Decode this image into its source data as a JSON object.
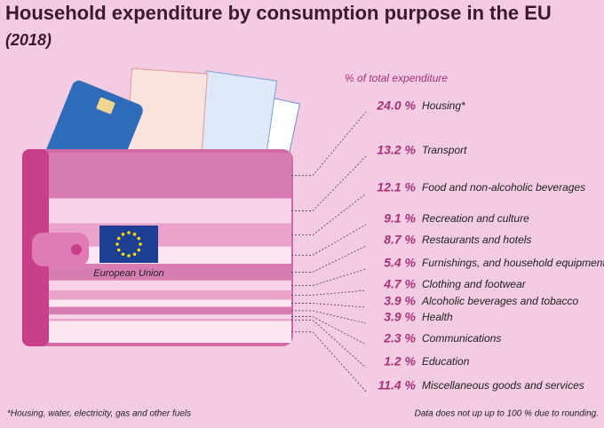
{
  "chart_data": {
    "type": "wallet",
    "title": "Household expenditure by consumption purpose in the EU",
    "subtitle": "(2018)",
    "value_axis_label": "% of total expenditure",
    "wallet_label": "European Union",
    "categories": [
      "Housing*",
      "Transport",
      "Food and non-alcoholic beverages",
      "Recreation and culture",
      "Restaurants and hotels",
      "Furnishings, and household equipment",
      "Clothing and footwear",
      "Alcoholic beverages and tobacco",
      "Health",
      "Communications",
      "Education",
      "Miscellaneous goods and services"
    ],
    "values": [
      24.0,
      13.2,
      12.1,
      9.1,
      8.7,
      5.4,
      4.7,
      3.9,
      3.9,
      2.3,
      1.2,
      11.4
    ],
    "value_labels": [
      "24.0 %",
      "13.2 %",
      "12.1 %",
      "9.1 %",
      "8.7 %",
      "5.4 %",
      "4.7 %",
      "3.9 %",
      "3.9 %",
      "2.3 %",
      "1.2 %",
      "11.4 %"
    ],
    "colors": [
      "#d87db3",
      "#f7d3e7",
      "#eaa3cb",
      "#fbe6f1"
    ],
    "footnote": "*Housing, water, electricity, gas and other fuels",
    "note": "Data does not up up to 100 % due to rounding."
  }
}
